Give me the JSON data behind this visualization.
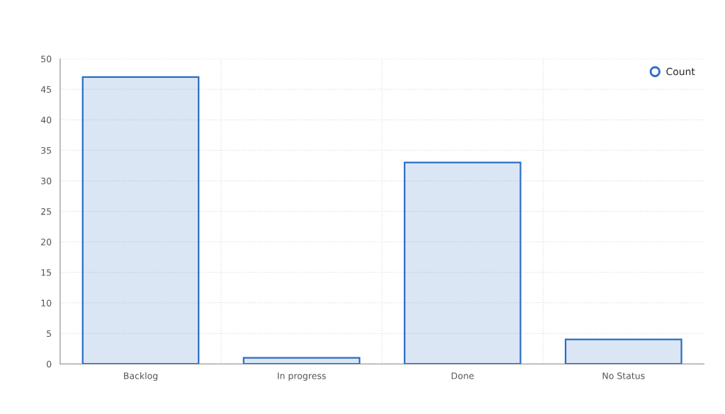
{
  "chart_data": {
    "type": "bar",
    "categories": [
      "Backlog",
      "In progress",
      "Done",
      "No Status"
    ],
    "series": [
      {
        "name": "Count",
        "color": "#2b6cc4",
        "values": [
          47,
          1,
          33,
          4
        ]
      }
    ],
    "ylim": [
      0,
      50
    ],
    "yticks": [
      0,
      5,
      10,
      15,
      20,
      25,
      30,
      35,
      40,
      45,
      50
    ],
    "grid": true,
    "legend": "top right"
  }
}
